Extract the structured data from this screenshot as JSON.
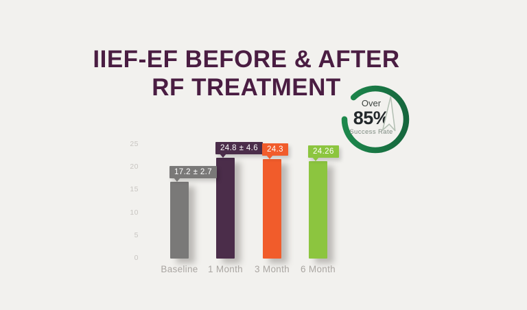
{
  "page": {
    "background_color": "#f2f1ee"
  },
  "title": {
    "line1": "IIEF-EF BEFORE & AFTER",
    "line2": "RF TREATMENT",
    "color": "#4a1d42"
  },
  "badge": {
    "over_label": "Over",
    "percentage": "85%",
    "subtitle": "Success Rate",
    "ring_icon": "progress-ring-icon",
    "arrow_icon": "growth-arrow-up-icon",
    "ring_color_dark": "#14603a",
    "ring_color_light": "#1f8f4f",
    "arrow_outline_color": "#b5c1b5"
  },
  "chart_data": {
    "type": "bar",
    "title": "IIEF-EF BEFORE & AFTER RF TREATMENT",
    "categories": [
      "Baseline",
      "1 Month",
      "3 Month",
      "6 Month"
    ],
    "values": [
      17.2,
      24.8,
      24.3,
      24.26
    ],
    "error_margins": [
      2.7,
      4.6,
      null,
      null
    ],
    "value_labels": [
      "17.2 ± 2.7",
      "24.8 ± 4.6",
      "24.3",
      "24.26"
    ],
    "bar_colors": [
      "#7a7978",
      "#4b2d4a",
      "#f15c2b",
      "#8cc53f"
    ],
    "y_ticks": [
      25,
      20,
      15,
      10,
      5,
      0
    ],
    "ylim": [
      0,
      25
    ],
    "xlabel": "",
    "ylabel": "",
    "grid": false,
    "legend": false,
    "axis_text_color": "#c8c5c1",
    "category_text_color": "#a9a5a1",
    "layout": {
      "display_heights_units": [
        16.9,
        22.1,
        21.8,
        21.4
      ],
      "note": "bar pixel heights as drawn in source graphic differ slightly from labeled values"
    }
  }
}
